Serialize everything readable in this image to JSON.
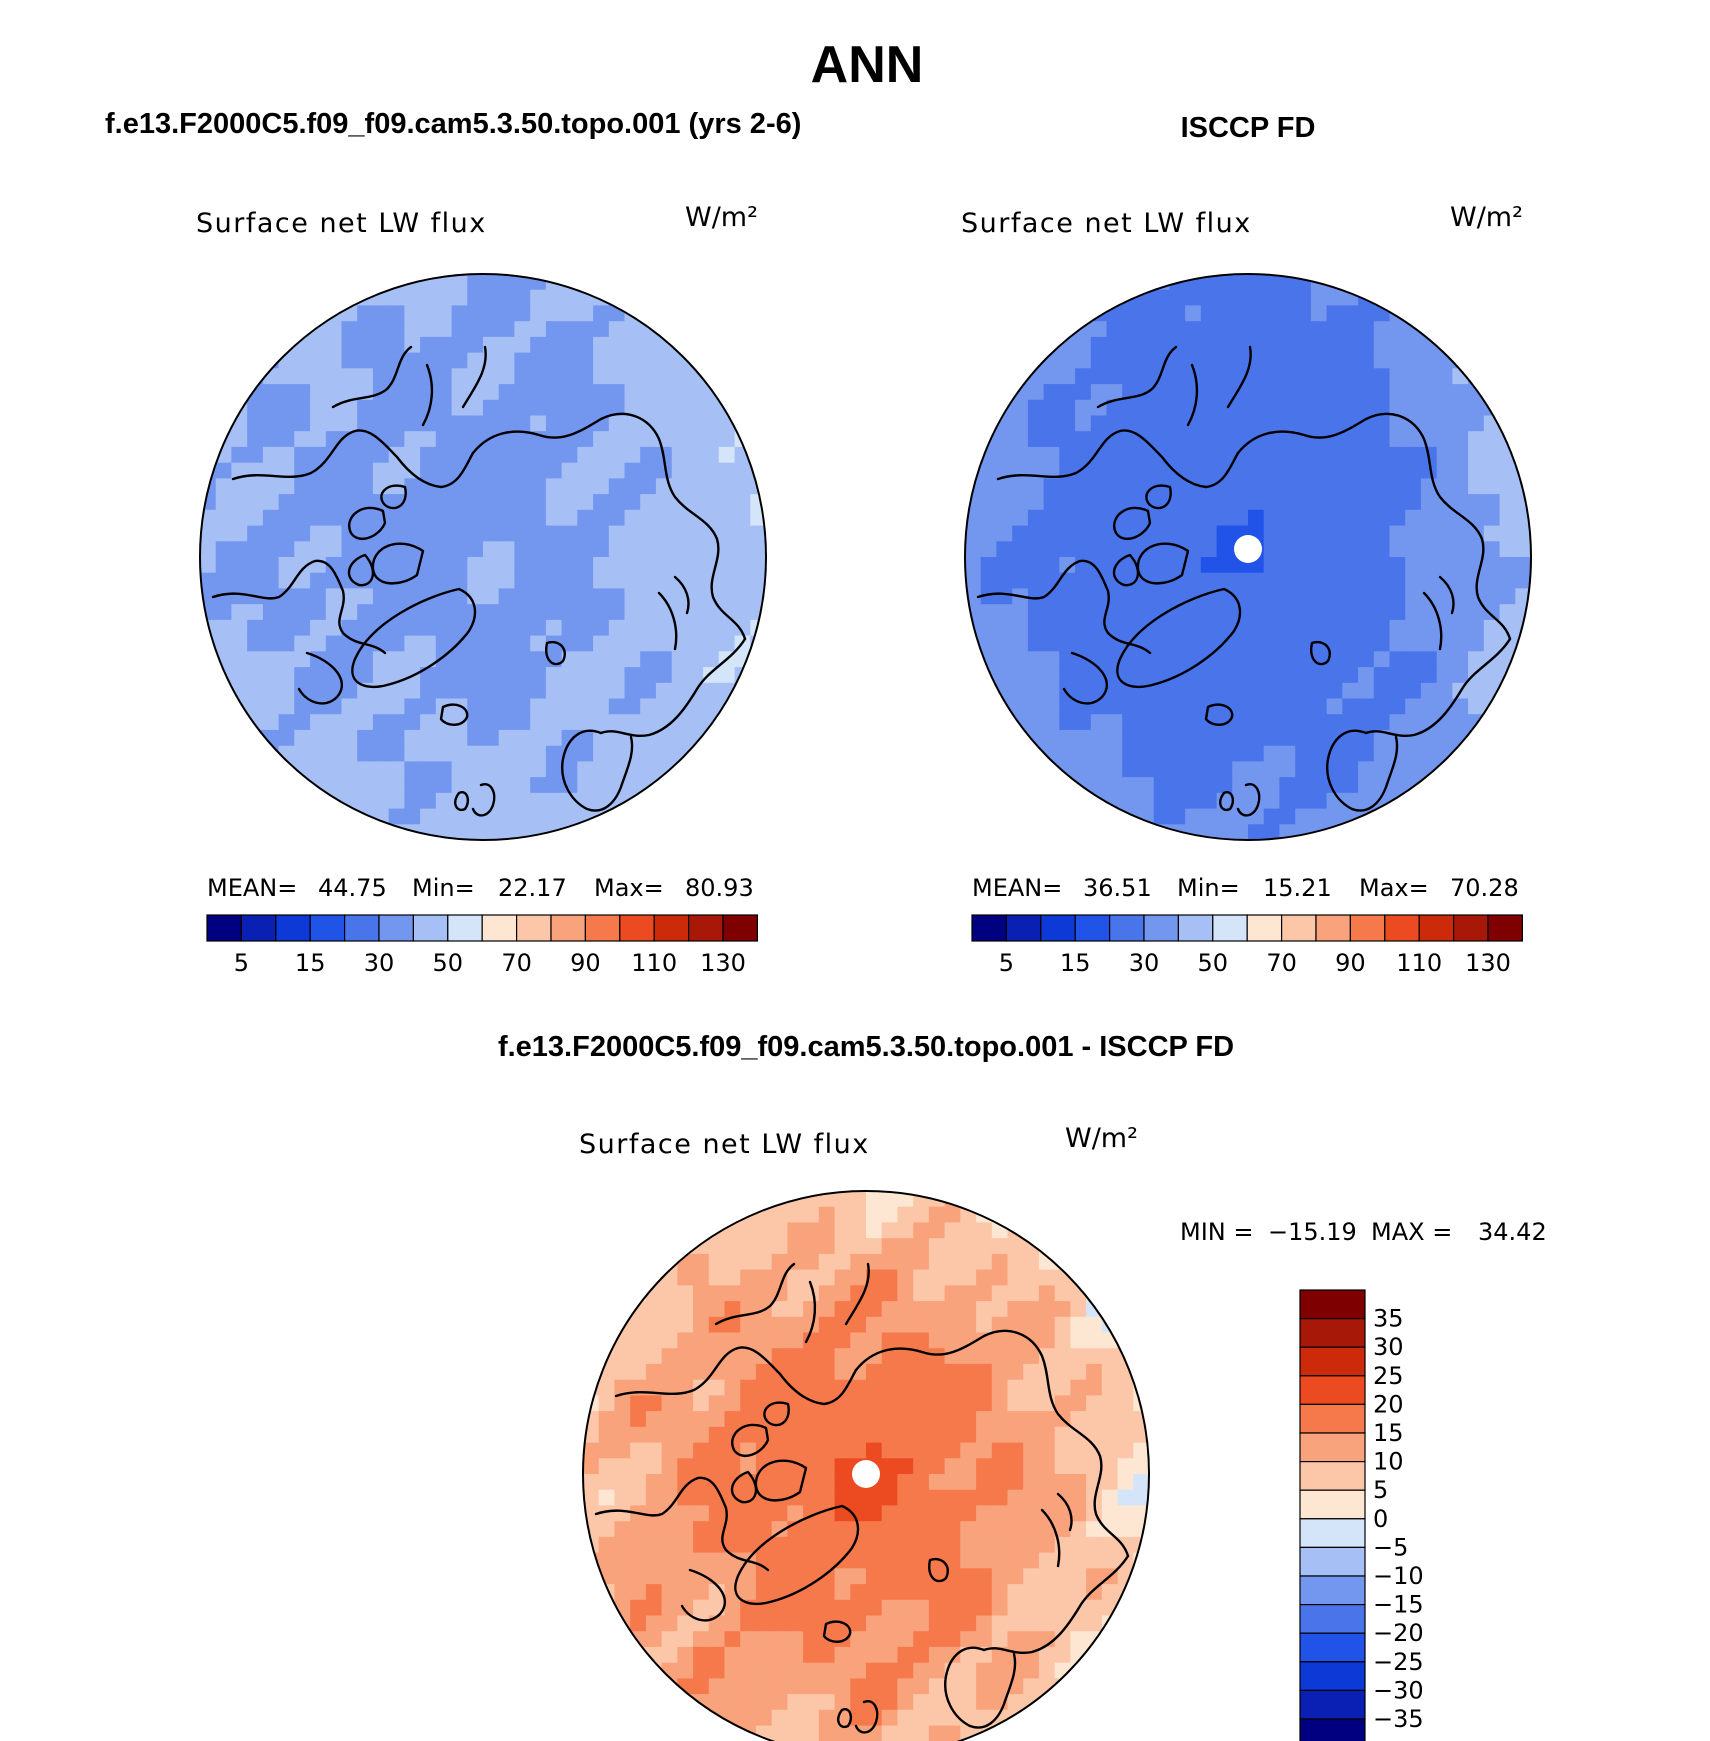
{
  "figure": {
    "title": "ANN",
    "bottom_title": "f.e13.F2000C5.f09_f09.cam5.3.50.topo.001 - ISCCP FD"
  },
  "chart_data": [
    {
      "type": "heatmap",
      "projection": "north-polar-stereographic",
      "case_title": "f.e13.F2000C5.f09_f09.cam5.3.50.topo.001 (yrs 2-6)",
      "variable": "Surface net LW flux",
      "units": "W/m²",
      "stats": {
        "mean_label": "MEAN=",
        "mean": "44.75",
        "min_label": "Min=",
        "min": "22.17",
        "max_label": "Max=",
        "max": "80.93"
      },
      "colorbar": {
        "orientation": "horizontal",
        "tick_labels": [
          "5",
          "15",
          "30",
          "50",
          "70",
          "90",
          "110",
          "130"
        ]
      },
      "field": {
        "pole_value": 40,
        "central_arctic_value": 38,
        "north_atlantic_value": 45,
        "north_pacific_value": 40,
        "siberia_value": 48,
        "canada_value": 40,
        "greenland_value": 42
      }
    },
    {
      "type": "heatmap",
      "projection": "north-polar-stereographic",
      "case_title": "ISCCP FD",
      "variable": "Surface net LW flux",
      "units": "W/m²",
      "stats": {
        "mean_label": "MEAN=",
        "mean": "36.51",
        "min_label": "Min=",
        "min": "15.21",
        "max_label": "Max=",
        "max": "70.28"
      },
      "colorbar": {
        "orientation": "horizontal",
        "tick_labels": [
          "5",
          "15",
          "30",
          "50",
          "70",
          "90",
          "110",
          "130"
        ]
      },
      "field": {
        "pole_value": 18,
        "central_arctic_value": 22,
        "north_atlantic_value": 32,
        "north_pacific_value": 28,
        "siberia_value": 45,
        "canada_value": 35,
        "greenland_value": 35
      }
    },
    {
      "type": "heatmap",
      "projection": "north-polar-stereographic",
      "case_title": "f.e13.F2000C5.f09_f09.cam5.3.50.topo.001 - ISCCP FD",
      "variable": "Surface net LW flux",
      "units": "W/m²",
      "stats": {
        "min_label": "MIN =",
        "min": "−15.19",
        "max_label": "MAX =",
        "max": "34.42"
      },
      "colorbar": {
        "orientation": "vertical",
        "tick_labels": [
          "35",
          "30",
          "25",
          "20",
          "15",
          "10",
          "5",
          "0",
          "−5",
          "−10",
          "−15",
          "−20",
          "−25",
          "−30",
          "−35"
        ]
      },
      "field": {
        "pole_value": 22,
        "central_arctic_value": 18,
        "north_atlantic_value": 8,
        "north_pacific_value": 6,
        "siberia_value": 3,
        "canada_value": 7,
        "greenland_value": 12
      }
    }
  ],
  "palettes": {
    "abs": [
      "#000080",
      "#0a1fb3",
      "#0d3ad6",
      "#2153e8",
      "#4a74ea",
      "#7396ef",
      "#a6c0f6",
      "#d4e5fa",
      "#fde6d2",
      "#fcc6a9",
      "#f9a37c",
      "#f6794c",
      "#ec4a20",
      "#cc2a0a",
      "#a71808",
      "#7f0000"
    ],
    "diff": [
      "#7f0000",
      "#a71808",
      "#cc2a0a",
      "#ec4a20",
      "#f6794c",
      "#f9a37c",
      "#fcc6a9",
      "#fde6d2",
      "#d4e5fa",
      "#a6c0f6",
      "#7396ef",
      "#4a74ea",
      "#2153e8",
      "#0d3ad6",
      "#0a1fb3",
      "#000080"
    ]
  }
}
